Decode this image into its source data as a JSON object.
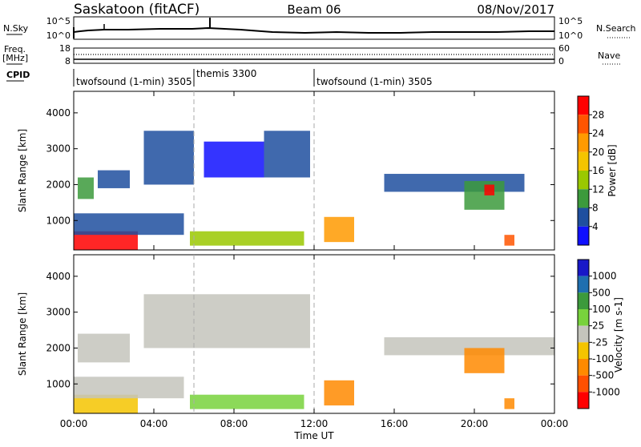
{
  "header": {
    "station": "Saskatoon (fitACF)",
    "beam": "Beam 06",
    "date": "08/Nov/2017"
  },
  "noise_panel": {
    "left_label": "N.Sky",
    "right_label": "N.Search",
    "left_ticks": [
      "10^5",
      "10^0"
    ],
    "right_ticks": [
      "10^5",
      "10^0"
    ]
  },
  "freq_panel": {
    "left_label_1": "Freq.",
    "left_label_2": "[MHz]",
    "left_ticks": [
      "18",
      "8"
    ],
    "right_label": "Nave",
    "right_ticks": [
      "60",
      "0"
    ]
  },
  "cpid": {
    "label": "CPID",
    "segments": [
      {
        "start_h": 0,
        "end_h": 6,
        "text": "twofsound (1-min) 3505"
      },
      {
        "start_h": 6,
        "end_h": 12,
        "text": "themis 3300"
      },
      {
        "start_h": 12,
        "end_h": 24,
        "text": "twofsound (1-min) 3505"
      }
    ]
  },
  "chart_data": [
    {
      "type": "heatmap",
      "quantity": "Power",
      "ylabel": "Slant Range [km]",
      "xlabel": "",
      "ylim": [
        180,
        4600
      ],
      "xlim_hours": [
        0,
        24
      ],
      "yticks": [
        "1000",
        "2000",
        "3000",
        "4000"
      ],
      "colorbar_label": "Power [dB]",
      "colorbar_ticks": [
        "28",
        "24",
        "20",
        "16",
        "12",
        "8",
        "4"
      ],
      "colorbar_colors": [
        "#ff0000",
        "#ff5500",
        "#ff9a00",
        "#f4c400",
        "#9ac800",
        "#3c9a3c",
        "#1f4f9f",
        "#1010ff"
      ],
      "regions": [
        {
          "t0": 0.0,
          "t1": 3.2,
          "r0": 180,
          "r1": 700,
          "c": "#ff0000"
        },
        {
          "t0": 0.0,
          "t1": 5.5,
          "r0": 600,
          "r1": 1200,
          "c": "#1f4f9f"
        },
        {
          "t0": 0.2,
          "t1": 1.0,
          "r0": 1600,
          "r1": 2200,
          "c": "#3c9a3c"
        },
        {
          "t0": 1.2,
          "t1": 2.8,
          "r0": 1900,
          "r1": 2400,
          "c": "#1f4f9f"
        },
        {
          "t0": 3.5,
          "t1": 6.0,
          "r0": 2000,
          "r1": 3500,
          "c": "#1f4f9f"
        },
        {
          "t0": 6.5,
          "t1": 9.5,
          "r0": 2200,
          "r1": 3200,
          "c": "#1010ff"
        },
        {
          "t0": 9.5,
          "t1": 11.8,
          "r0": 2200,
          "r1": 3500,
          "c": "#1f4f9f"
        },
        {
          "t0": 5.8,
          "t1": 11.5,
          "r0": 300,
          "r1": 700,
          "c": "#9ac800"
        },
        {
          "t0": 12.5,
          "t1": 14.0,
          "r0": 400,
          "r1": 1100,
          "c": "#ff9a00"
        },
        {
          "t0": 15.5,
          "t1": 22.5,
          "r0": 1800,
          "r1": 2300,
          "c": "#1f4f9f"
        },
        {
          "t0": 19.5,
          "t1": 21.5,
          "r0": 1300,
          "r1": 2100,
          "c": "#3c9a3c"
        },
        {
          "t0": 20.5,
          "t1": 21.0,
          "r0": 1700,
          "r1": 2000,
          "c": "#ff0000"
        },
        {
          "t0": 21.5,
          "t1": 22.0,
          "r0": 300,
          "r1": 600,
          "c": "#ff5500"
        }
      ]
    },
    {
      "type": "heatmap",
      "quantity": "Velocity",
      "ylabel": "Slant Range [km]",
      "xlabel": "Time UT",
      "ylim": [
        180,
        4600
      ],
      "xlim_hours": [
        0,
        24
      ],
      "xticks": [
        "00:00",
        "04:00",
        "08:00",
        "12:00",
        "16:00",
        "20:00",
        "00:00"
      ],
      "yticks": [
        "1000",
        "2000",
        "3000",
        "4000"
      ],
      "colorbar_label": "Velocity [m s-1]",
      "colorbar_ticks": [
        "1000",
        "500",
        "100",
        "25",
        "-25",
        "-100",
        "-500",
        "-1000"
      ],
      "colorbar_colors": [
        "#1818c8",
        "#1f6fb0",
        "#3c9a3c",
        "#78d23c",
        "#c4c4bc",
        "#f4c400",
        "#ff8a00",
        "#ff5000",
        "#ff0000"
      ],
      "regions": [
        {
          "t0": 0.0,
          "t1": 3.2,
          "r0": 180,
          "r1": 700,
          "c": "#f4c400"
        },
        {
          "t0": 0.0,
          "t1": 5.5,
          "r0": 600,
          "r1": 1200,
          "c": "#c4c4bc"
        },
        {
          "t0": 0.2,
          "t1": 2.8,
          "r0": 1600,
          "r1": 2400,
          "c": "#c4c4bc"
        },
        {
          "t0": 3.5,
          "t1": 11.8,
          "r0": 2000,
          "r1": 3500,
          "c": "#c4c4bc"
        },
        {
          "t0": 5.8,
          "t1": 11.5,
          "r0": 300,
          "r1": 700,
          "c": "#78d23c"
        },
        {
          "t0": 12.5,
          "t1": 14.0,
          "r0": 400,
          "r1": 1100,
          "c": "#ff8a00"
        },
        {
          "t0": 15.5,
          "t1": 24.0,
          "r0": 1800,
          "r1": 2300,
          "c": "#c4c4bc"
        },
        {
          "t0": 19.5,
          "t1": 21.5,
          "r0": 1300,
          "r1": 2000,
          "c": "#ff8a00"
        },
        {
          "t0": 21.5,
          "t1": 22.0,
          "r0": 300,
          "r1": 600,
          "c": "#ff8a00"
        }
      ]
    }
  ]
}
